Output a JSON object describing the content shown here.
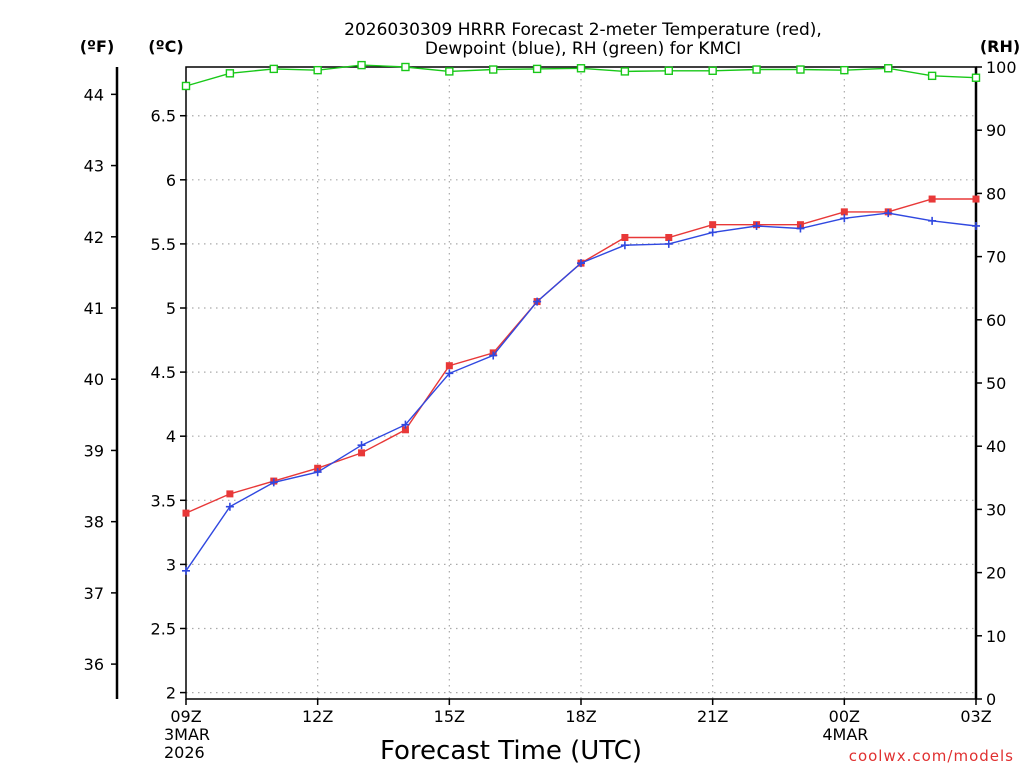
{
  "chart_data": {
    "type": "line",
    "title_line1": "2026030309 HRRR Forecast 2-meter Temperature (red),",
    "title_line2": "Dewpoint (blue), RH (green) for KMCI",
    "xlabel": "Forecast Time (UTC)",
    "credit": "coolwx.com/models",
    "units": {
      "fahrenheit": "(ºF)",
      "celsius": "(ºC)",
      "rh": "(RH)"
    },
    "x_hours": [
      0,
      1,
      2,
      3,
      4,
      5,
      6,
      7,
      8,
      9,
      10,
      11,
      12,
      13,
      14,
      15,
      16,
      17,
      18
    ],
    "x_ticks": [
      {
        "hour": 0,
        "label": "09Z",
        "sub1": "3MAR",
        "sub2": "2026"
      },
      {
        "hour": 3,
        "label": "12Z",
        "sub1": "",
        "sub2": ""
      },
      {
        "hour": 6,
        "label": "15Z",
        "sub1": "",
        "sub2": ""
      },
      {
        "hour": 9,
        "label": "18Z",
        "sub1": "",
        "sub2": ""
      },
      {
        "hour": 12,
        "label": "21Z",
        "sub1": "",
        "sub2": ""
      },
      {
        "hour": 15,
        "label": "00Z",
        "sub1": "4MAR",
        "sub2": ""
      },
      {
        "hour": 18,
        "label": "03Z",
        "sub1": "",
        "sub2": ""
      }
    ],
    "celsius_axis": {
      "min": 1.95,
      "max": 6.88,
      "ticks": [
        "2",
        "2.5",
        "3",
        "3.5",
        "4",
        "4.5",
        "5",
        "5.5",
        "6",
        "6.5"
      ]
    },
    "fahrenheit_axis": {
      "ticks": [
        "36",
        "37",
        "38",
        "39",
        "40",
        "41",
        "42",
        "43",
        "44"
      ]
    },
    "rh_axis": {
      "min": 0,
      "max": 100,
      "ticks": [
        "0",
        "10",
        "20",
        "30",
        "40",
        "50",
        "60",
        "70",
        "80",
        "90",
        "100"
      ]
    },
    "series": [
      {
        "name": "Temperature",
        "color": "#e83838",
        "marker": "filled-square",
        "axis": "celsius",
        "values": [
          3.4,
          3.55,
          3.65,
          3.75,
          3.87,
          4.05,
          4.55,
          4.65,
          5.05,
          5.35,
          5.55,
          5.55,
          5.65,
          5.65,
          5.65,
          5.75,
          5.75,
          5.85,
          5.85
        ]
      },
      {
        "name": "Dewpoint",
        "color": "#3048e0",
        "marker": "plus",
        "axis": "celsius",
        "values": [
          2.95,
          3.45,
          3.64,
          3.72,
          3.93,
          4.09,
          4.49,
          4.63,
          5.05,
          5.35,
          5.49,
          5.5,
          5.59,
          5.64,
          5.62,
          5.7,
          5.74,
          5.68,
          5.64
        ]
      },
      {
        "name": "RH",
        "color": "#18c818",
        "marker": "open-square",
        "axis": "rh",
        "values": [
          97,
          99,
          99.7,
          99.5,
          100.3,
          100,
          99.3,
          99.6,
          99.7,
          99.8,
          99.3,
          99.4,
          99.4,
          99.6,
          99.6,
          99.5,
          99.8,
          98.6,
          98.3
        ]
      }
    ],
    "grid": true
  }
}
